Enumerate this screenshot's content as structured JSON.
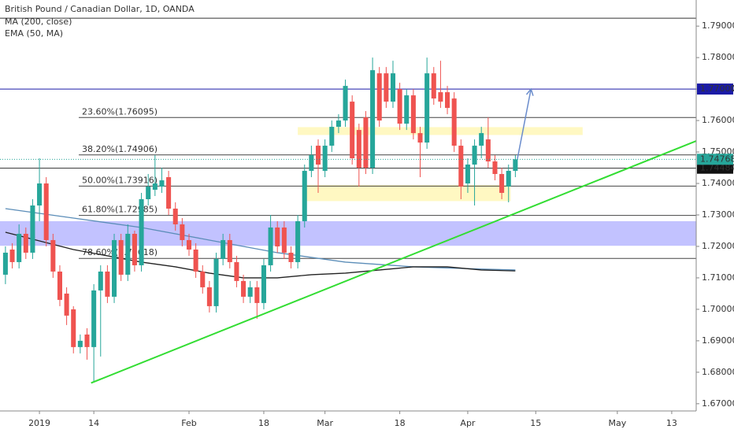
{
  "chart_data": {
    "type": "candlestick",
    "title": "British Pound / Canadian Dollar, 1D, OANDA",
    "up_color": "#26a69a",
    "down_color": "#ef5350",
    "categories": [
      null,
      null,
      null,
      null,
      null,
      "2019",
      null,
      null,
      null,
      null,
      null,
      null,
      null,
      "14",
      null,
      null,
      null,
      null,
      null,
      null,
      null,
      null,
      null,
      null,
      null,
      null,
      null,
      "Feb",
      null,
      null,
      null,
      null,
      null,
      null,
      null,
      null,
      null,
      null,
      "18",
      null,
      null,
      null,
      null,
      null,
      null,
      null,
      null,
      "Mar",
      null,
      null,
      null,
      null,
      null,
      null,
      null,
      null,
      null,
      null,
      "18",
      null,
      null,
      null,
      null,
      null,
      null,
      null,
      null,
      null,
      "Apr",
      null,
      null,
      null,
      null,
      null,
      null,
      null,
      null,
      null,
      "15",
      null,
      null,
      null,
      null,
      null,
      null,
      null,
      null,
      null,
      null,
      null,
      "May",
      null,
      null,
      null,
      null,
      null,
      null,
      null,
      "13"
    ],
    "open": [
      1.711,
      1.719,
      1.715,
      1.724,
      1.718,
      1.733,
      1.74,
      1.722,
      1.712,
      1.705,
      1.7,
      1.688,
      1.692,
      1.688,
      1.706,
      1.712,
      1.704,
      1.722,
      1.711,
      1.724,
      1.714,
      1.735,
      1.738,
      1.739,
      1.742,
      1.732,
      1.727,
      1.722,
      1.719,
      1.712,
      1.707,
      1.701,
      1.716,
      1.722,
      1.715,
      1.709,
      1.704,
      1.707,
      1.702,
      1.714,
      1.726,
      1.726,
      1.718,
      1.715,
      1.728,
      1.744,
      1.752,
      1.744,
      1.752,
      1.758,
      1.76,
      1.766,
      1.757,
      1.761,
      1.745,
      1.775,
      1.775,
      1.766,
      1.77,
      1.759,
      1.768,
      1.756,
      1.753,
      1.775,
      1.769,
      1.769,
      1.767,
      1.752,
      1.74,
      1.746,
      1.752,
      1.754,
      1.747,
      1.743,
      1.739,
      1.744,
      null,
      null,
      null,
      null,
      null,
      null,
      null,
      null,
      null,
      null,
      null,
      null,
      null,
      null,
      null,
      null,
      null,
      null,
      null,
      null,
      null,
      null,
      null
    ],
    "high": [
      1.72,
      1.721,
      1.727,
      1.726,
      1.735,
      1.748,
      1.742,
      1.724,
      1.714,
      1.707,
      1.701,
      1.692,
      1.694,
      1.708,
      1.714,
      1.714,
      1.724,
      1.724,
      1.727,
      1.725,
      1.737,
      1.743,
      1.749,
      1.745,
      1.744,
      1.734,
      1.729,
      1.724,
      1.721,
      1.714,
      1.709,
      1.718,
      1.724,
      1.724,
      1.717,
      1.711,
      1.709,
      1.709,
      1.716,
      1.73,
      1.728,
      1.728,
      1.72,
      1.73,
      1.746,
      1.752,
      1.754,
      1.754,
      1.76,
      1.762,
      1.773,
      1.768,
      1.759,
      1.763,
      1.78,
      1.777,
      1.777,
      1.779,
      1.772,
      1.77,
      1.77,
      1.758,
      1.78,
      1.777,
      1.779,
      1.771,
      1.769,
      1.754,
      1.748,
      1.754,
      1.758,
      1.761,
      1.749,
      1.745,
      1.746,
      1.749,
      null,
      null,
      null,
      null,
      null,
      null,
      null,
      null,
      null,
      null,
      null,
      null,
      null,
      null,
      null,
      null,
      null,
      null,
      null,
      null,
      null,
      null,
      null
    ],
    "low": [
      1.708,
      1.713,
      1.713,
      1.716,
      1.716,
      1.728,
      1.72,
      1.71,
      1.701,
      1.695,
      1.686,
      1.686,
      1.684,
      1.677,
      1.685,
      1.702,
      1.702,
      1.709,
      1.709,
      1.712,
      1.712,
      1.733,
      1.736,
      1.737,
      1.73,
      1.725,
      1.72,
      1.717,
      1.71,
      1.705,
      1.699,
      1.699,
      1.714,
      1.713,
      1.707,
      1.702,
      1.702,
      1.697,
      1.7,
      1.712,
      1.718,
      1.716,
      1.713,
      1.713,
      1.726,
      1.742,
      1.737,
      1.742,
      1.75,
      1.756,
      1.758,
      1.746,
      1.739,
      1.743,
      1.743,
      1.758,
      1.764,
      1.764,
      1.757,
      1.757,
      1.754,
      1.742,
      1.751,
      1.765,
      1.764,
      1.762,
      1.75,
      1.735,
      1.737,
      1.733,
      1.748,
      1.745,
      1.741,
      1.735,
      1.734,
      1.742,
      null,
      null,
      null,
      null,
      null,
      null,
      null,
      null,
      null,
      null,
      null,
      null,
      null,
      null,
      null,
      null,
      null,
      null,
      null,
      null,
      null,
      null,
      null
    ],
    "close": [
      1.718,
      1.715,
      1.724,
      1.718,
      1.733,
      1.74,
      1.722,
      1.712,
      1.703,
      1.698,
      1.688,
      1.69,
      1.688,
      1.706,
      1.712,
      1.704,
      1.722,
      1.711,
      1.724,
      1.714,
      1.735,
      1.739,
      1.74,
      1.741,
      1.732,
      1.727,
      1.722,
      1.719,
      1.712,
      1.707,
      1.701,
      1.716,
      1.722,
      1.715,
      1.709,
      1.704,
      1.707,
      1.702,
      1.714,
      1.726,
      1.72,
      1.718,
      1.715,
      1.728,
      1.744,
      1.749,
      1.746,
      1.752,
      1.758,
      1.76,
      1.771,
      1.748,
      1.745,
      1.745,
      1.776,
      1.76,
      1.766,
      1.775,
      1.759,
      1.768,
      1.756,
      1.753,
      1.775,
      1.767,
      1.766,
      1.764,
      1.752,
      1.739,
      1.746,
      1.752,
      1.756,
      1.747,
      1.743,
      1.737,
      1.744,
      1.7477,
      null,
      null,
      null,
      null,
      null,
      null,
      null,
      null,
      null,
      null,
      null,
      null,
      null,
      null,
      null,
      null,
      null,
      null,
      null,
      null,
      null,
      null,
      null
    ],
    "xlim": [
      -0.8,
      101.6
    ],
    "ylim": [
      1.6677,
      1.7983
    ],
    "yticks": [
      {
        "value": 1.67,
        "label": "1.67000"
      },
      {
        "value": 1.68,
        "label": "1.68000"
      },
      {
        "value": 1.69,
        "label": "1.69000"
      },
      {
        "value": 1.7,
        "label": "1.70000"
      },
      {
        "value": 1.71,
        "label": "1.71000"
      },
      {
        "value": 1.72,
        "label": "1.72000"
      },
      {
        "value": 1.73,
        "label": "1.73000"
      },
      {
        "value": 1.74,
        "label": "1.74000"
      },
      {
        "value": 1.75,
        "label": "1.75000"
      },
      {
        "value": 1.76,
        "label": "1.76000"
      },
      {
        "value": 1.77,
        "label": "1.77000"
      },
      {
        "value": 1.78,
        "label": "1.78000"
      },
      {
        "value": 1.79,
        "label": "1.79000"
      }
    ],
    "lines": [
      {
        "name": "MA (200, close)",
        "color": "#5b8db8",
        "x": [
          0,
          10,
          20,
          30,
          40,
          50,
          60,
          70,
          75
        ],
        "values": [
          1.732,
          1.729,
          1.726,
          1.722,
          1.718,
          1.715,
          1.7135,
          1.7128,
          1.7125
        ]
      },
      {
        "name": "EMA (50, MA)",
        "color": "#222222",
        "x": [
          0,
          10,
          20,
          25,
          30,
          35,
          40,
          45,
          50,
          55,
          60,
          65,
          70,
          75
        ],
        "values": [
          1.7245,
          1.719,
          1.715,
          1.7135,
          1.7115,
          1.71,
          1.71,
          1.711,
          1.7115,
          1.7125,
          1.7135,
          1.7135,
          1.7125,
          1.7122
        ]
      }
    ],
    "zones": [
      {
        "color": "rgba(110,110,255,0.42)",
        "x": [
          -0.8,
          101.6
        ],
        "y": [
          1.7202,
          1.728
        ]
      },
      {
        "color": "rgba(255,240,120,0.45)",
        "x": [
          43,
          84.9
        ],
        "y": [
          1.7554,
          1.7579
        ]
      },
      {
        "color": "rgba(255,240,120,0.45)",
        "x": [
          44.1,
          74.3
        ],
        "y": [
          1.7344,
          1.7395
        ]
      }
    ],
    "hlines": [
      {
        "value": 1.7925,
        "color": "#333333"
      },
      {
        "value": 1.77,
        "color": "#1a1aa6"
      },
      {
        "value": 1.74484,
        "color": "#333333"
      }
    ],
    "fib_levels": [
      {
        "label": "23.60%(1.76095)",
        "value": 1.76095
      },
      {
        "label": "38.20%(1.74906)",
        "value": 1.74906
      },
      {
        "label": "50.00%(1.73916)",
        "value": 1.73916
      },
      {
        "label": "61.80%(1.72985)",
        "value": 1.72985
      },
      {
        "label": "78.60%(1.71618)",
        "value": 1.71618
      }
    ],
    "trendline": {
      "color": "#33dd33",
      "x": [
        12.6,
        101.6
      ],
      "values": [
        1.6766,
        1.7535
      ]
    },
    "arrow": {
      "color": "#6a8ccc",
      "x": [
        75.3,
        77.3
      ],
      "values": [
        1.7478,
        1.77
      ]
    },
    "last_price": {
      "value": 1.74768,
      "label": "1.74768",
      "color": "#26a69a"
    },
    "price_tags": [
      {
        "value": 1.77,
        "label": "1.77000",
        "color": "#1a1aa6"
      },
      {
        "value": 1.74484,
        "label": "1.74484",
        "color": "#111111"
      }
    ]
  }
}
